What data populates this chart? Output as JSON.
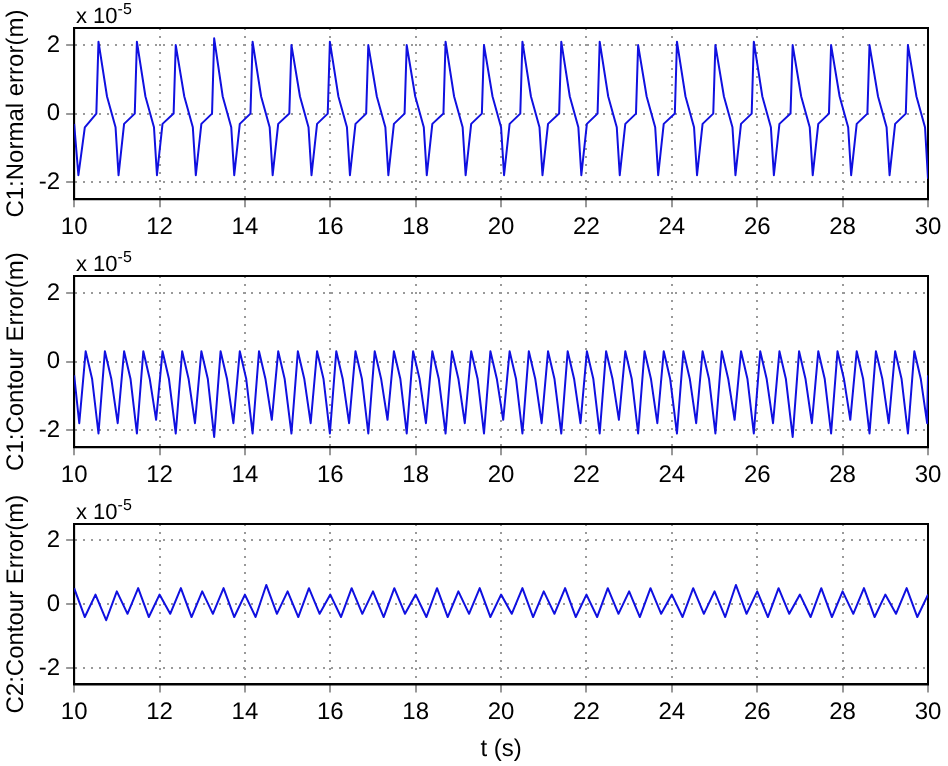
{
  "chart_data": [
    {
      "type": "line",
      "ylabel": "C1:Normal error(m)",
      "annotations": [
        "x 10$^{-5}$"
      ],
      "xlim": [
        10,
        30
      ],
      "xticks": [
        10,
        12,
        14,
        16,
        18,
        20,
        22,
        24,
        26,
        28,
        30
      ],
      "ylim": [
        -2.5,
        2.5
      ],
      "yticks": [
        -2,
        0,
        2
      ],
      "grid": true,
      "color": "#1010e0",
      "x": [
        10,
        10.1,
        10.25,
        10.52,
        10.57,
        10.77,
        10.97,
        11.04,
        11.17,
        11.42,
        11.47,
        11.67,
        11.87,
        11.94,
        12.07,
        12.33,
        12.38,
        12.58,
        12.78,
        12.85,
        12.98,
        13.23,
        13.28,
        13.48,
        13.68,
        13.75,
        13.88,
        14.13,
        14.18,
        14.38,
        14.58,
        14.65,
        14.78,
        15.04,
        15.09,
        15.29,
        15.49,
        15.56,
        15.69,
        15.94,
        15.99,
        16.19,
        16.39,
        16.46,
        16.59,
        16.84,
        16.89,
        17.09,
        17.29,
        17.36,
        17.49,
        17.74,
        17.79,
        17.99,
        18.19,
        18.26,
        18.39,
        18.65,
        18.7,
        18.9,
        19.1,
        19.17,
        19.3,
        19.55,
        19.6,
        19.8,
        20,
        20.07,
        20.2,
        20.45,
        20.5,
        20.7,
        20.9,
        20.97,
        21.1,
        21.36,
        21.41,
        21.61,
        21.81,
        21.88,
        22.01,
        22.26,
        22.31,
        22.51,
        22.71,
        22.78,
        22.91,
        23.16,
        23.21,
        23.41,
        23.61,
        23.68,
        23.81,
        24.07,
        24.12,
        24.32,
        24.52,
        24.59,
        24.72,
        24.97,
        25.02,
        25.22,
        25.42,
        25.49,
        25.62,
        25.87,
        25.92,
        26.12,
        26.32,
        26.39,
        26.52,
        26.78,
        26.83,
        27.03,
        27.23,
        27.3,
        27.43,
        27.68,
        27.73,
        27.93,
        28.13,
        28.2,
        28.33,
        28.58,
        28.63,
        28.83,
        29.03,
        29.1,
        29.23,
        29.48,
        29.53,
        29.73,
        29.93,
        30
      ],
      "values": [
        -0.3,
        -1.8,
        -0.4,
        0.0,
        2.1,
        0.5,
        -0.4,
        -1.8,
        -0.3,
        0.0,
        2.1,
        0.5,
        -0.4,
        -1.8,
        -0.3,
        0.0,
        2.0,
        0.5,
        -0.4,
        -1.8,
        -0.3,
        0.0,
        2.2,
        0.5,
        -0.4,
        -1.8,
        -0.3,
        0.0,
        2.1,
        0.5,
        -0.4,
        -1.8,
        -0.3,
        0.0,
        2.0,
        0.5,
        -0.4,
        -1.8,
        -0.3,
        0.0,
        2.1,
        0.5,
        -0.4,
        -1.8,
        -0.3,
        0.0,
        2.0,
        0.5,
        -0.4,
        -1.8,
        -0.3,
        0.0,
        2.0,
        0.5,
        -0.4,
        -1.8,
        -0.3,
        0.0,
        2.1,
        0.5,
        -0.4,
        -1.8,
        -0.3,
        0.0,
        2.0,
        0.5,
        -0.4,
        -1.8,
        -0.3,
        0.0,
        2.1,
        0.5,
        -0.4,
        -1.8,
        -0.3,
        0.0,
        2.1,
        0.5,
        -0.4,
        -1.8,
        -0.3,
        0.0,
        2.1,
        0.5,
        -0.4,
        -1.8,
        -0.3,
        0.0,
        2.0,
        0.5,
        -0.4,
        -1.8,
        -0.3,
        0.0,
        2.1,
        0.5,
        -0.4,
        -1.8,
        -0.3,
        0.0,
        2.0,
        0.5,
        -0.4,
        -1.8,
        -0.3,
        0.0,
        2.1,
        0.5,
        -0.4,
        -1.8,
        -0.3,
        0.0,
        2.0,
        0.5,
        -0.4,
        -1.8,
        -0.3,
        0.0,
        2.0,
        0.5,
        -0.4,
        -1.8,
        -0.3,
        0.0,
        2.0,
        0.5,
        -0.4,
        -1.8,
        -0.3,
        0.0,
        2.0,
        0.5,
        -0.4,
        -1.9
      ]
    },
    {
      "type": "line",
      "ylabel": "C1:Contour Error(m)",
      "annotations": [
        "x 10$^{-5}$"
      ],
      "xlim": [
        10,
        30
      ],
      "xticks": [
        10,
        12,
        14,
        16,
        18,
        20,
        22,
        24,
        26,
        28,
        30
      ],
      "ylim": [
        -2.5,
        2.5
      ],
      "yticks": [
        -2,
        0,
        2
      ],
      "grid": true,
      "color": "#1010e0",
      "x": [
        10,
        10.12,
        10.27,
        10.42,
        10.57,
        10.72,
        10.87,
        11.02,
        11.17,
        11.32,
        11.47,
        11.62,
        11.77,
        11.92,
        12.07,
        12.22,
        12.38,
        12.53,
        12.68,
        12.83,
        12.98,
        13.13,
        13.28,
        13.43,
        13.58,
        13.73,
        13.88,
        14.03,
        14.18,
        14.33,
        14.48,
        14.63,
        14.78,
        14.93,
        15.09,
        15.24,
        15.39,
        15.54,
        15.69,
        15.84,
        15.99,
        16.14,
        16.29,
        16.44,
        16.59,
        16.74,
        16.89,
        17.04,
        17.19,
        17.34,
        17.49,
        17.64,
        17.79,
        17.94,
        18.09,
        18.24,
        18.39,
        18.54,
        18.7,
        18.85,
        19,
        19.15,
        19.3,
        19.45,
        19.6,
        19.75,
        19.9,
        20.05,
        20.2,
        20.35,
        20.5,
        20.65,
        20.8,
        20.95,
        21.1,
        21.25,
        21.41,
        21.56,
        21.71,
        21.86,
        22.01,
        22.16,
        22.31,
        22.46,
        22.61,
        22.76,
        22.91,
        23.06,
        23.21,
        23.36,
        23.51,
        23.66,
        23.81,
        23.96,
        24.12,
        24.27,
        24.42,
        24.57,
        24.72,
        24.87,
        25.02,
        25.17,
        25.32,
        25.47,
        25.62,
        25.77,
        25.92,
        26.07,
        26.22,
        26.37,
        26.52,
        26.67,
        26.83,
        26.98,
        27.13,
        27.28,
        27.43,
        27.58,
        27.73,
        27.88,
        28.03,
        28.18,
        28.33,
        28.48,
        28.63,
        28.78,
        28.93,
        29.08,
        29.23,
        29.38,
        29.53,
        29.68,
        29.83,
        29.98,
        30
      ],
      "values": [
        -0.4,
        -1.8,
        0.3,
        -0.5,
        -2.1,
        0.3,
        -0.5,
        -1.8,
        0.3,
        -0.5,
        -2.1,
        0.3,
        -0.5,
        -1.7,
        0.3,
        -0.5,
        -2.1,
        0.3,
        -0.5,
        -1.8,
        0.3,
        -0.5,
        -2.2,
        0.3,
        -0.5,
        -1.8,
        0.3,
        -0.5,
        -2.1,
        0.3,
        -0.5,
        -1.7,
        0.3,
        -0.5,
        -2.1,
        0.3,
        -0.5,
        -1.8,
        0.3,
        -0.5,
        -2.1,
        0.3,
        -0.5,
        -1.8,
        0.3,
        -0.5,
        -2.1,
        0.3,
        -0.5,
        -1.7,
        0.3,
        -0.5,
        -2.1,
        0.3,
        -0.5,
        -1.8,
        0.3,
        -0.5,
        -2.1,
        0.3,
        -0.5,
        -1.8,
        0.3,
        -0.5,
        -2.1,
        0.3,
        -0.5,
        -1.7,
        0.3,
        -0.5,
        -2.1,
        0.3,
        -0.5,
        -1.8,
        0.3,
        -0.5,
        -2.1,
        0.3,
        -0.5,
        -1.8,
        0.3,
        -0.5,
        -2.1,
        0.3,
        -0.5,
        -1.7,
        0.3,
        -0.5,
        -2.1,
        0.3,
        -0.5,
        -1.8,
        0.3,
        -0.5,
        -2.1,
        0.3,
        -0.5,
        -1.8,
        0.3,
        -0.5,
        -2.1,
        0.3,
        -0.5,
        -1.7,
        0.3,
        -0.5,
        -2.1,
        0.3,
        -0.5,
        -1.8,
        0.3,
        -0.5,
        -2.2,
        0.3,
        -0.5,
        -1.8,
        0.3,
        -0.5,
        -2.1,
        0.3,
        -0.5,
        -1.7,
        0.3,
        -0.5,
        -2.1,
        0.3,
        -0.5,
        -1.8,
        0.3,
        -0.5,
        -2.1,
        0.3,
        -0.5,
        -1.8,
        -0.4
      ]
    },
    {
      "type": "line",
      "ylabel": "C2:Contour Error(m)",
      "xlabel": "t (s)",
      "annotations": [
        "x 10$^{-5}$"
      ],
      "xlim": [
        10,
        30
      ],
      "xticks": [
        10,
        12,
        14,
        16,
        18,
        20,
        22,
        24,
        26,
        28,
        30
      ],
      "ylim": [
        -2.5,
        2.5
      ],
      "yticks": [
        -2,
        0,
        2
      ],
      "grid": true,
      "color": "#1010e0",
      "x": [
        10,
        10.25,
        10.5,
        10.75,
        11,
        11.25,
        11.5,
        11.75,
        12,
        12.25,
        12.5,
        12.75,
        13,
        13.25,
        13.5,
        13.75,
        14,
        14.25,
        14.5,
        14.75,
        15,
        15.25,
        15.5,
        15.75,
        16,
        16.25,
        16.5,
        16.75,
        17,
        17.25,
        17.5,
        17.75,
        18,
        18.25,
        18.5,
        18.75,
        19,
        19.25,
        19.5,
        19.75,
        20,
        20.25,
        20.5,
        20.75,
        21,
        21.25,
        21.5,
        21.75,
        22,
        22.25,
        22.5,
        22.75,
        23,
        23.25,
        23.5,
        23.75,
        24,
        24.25,
        24.5,
        24.75,
        25,
        25.25,
        25.5,
        25.75,
        26,
        26.25,
        26.5,
        26.75,
        27,
        27.25,
        27.5,
        27.75,
        28,
        28.25,
        28.5,
        28.75,
        29,
        29.25,
        29.5,
        29.75,
        30
      ],
      "values": [
        0.5,
        -0.4,
        0.3,
        -0.5,
        0.4,
        -0.3,
        0.5,
        -0.4,
        0.3,
        -0.3,
        0.5,
        -0.4,
        0.4,
        -0.3,
        0.5,
        -0.4,
        0.3,
        -0.4,
        0.6,
        -0.3,
        0.4,
        -0.4,
        0.5,
        -0.3,
        0.3,
        -0.4,
        0.5,
        -0.3,
        0.4,
        -0.4,
        0.5,
        -0.3,
        0.3,
        -0.4,
        0.5,
        -0.4,
        0.4,
        -0.3,
        0.5,
        -0.4,
        0.3,
        -0.3,
        0.5,
        -0.4,
        0.4,
        -0.3,
        0.5,
        -0.4,
        0.3,
        -0.4,
        0.5,
        -0.3,
        0.4,
        -0.4,
        0.5,
        -0.3,
        0.3,
        -0.4,
        0.5,
        -0.3,
        0.4,
        -0.4,
        0.6,
        -0.3,
        0.4,
        -0.4,
        0.5,
        -0.3,
        0.3,
        -0.4,
        0.5,
        -0.4,
        0.4,
        -0.3,
        0.5,
        -0.4,
        0.3,
        -0.3,
        0.5,
        -0.4,
        0.3
      ]
    }
  ]
}
